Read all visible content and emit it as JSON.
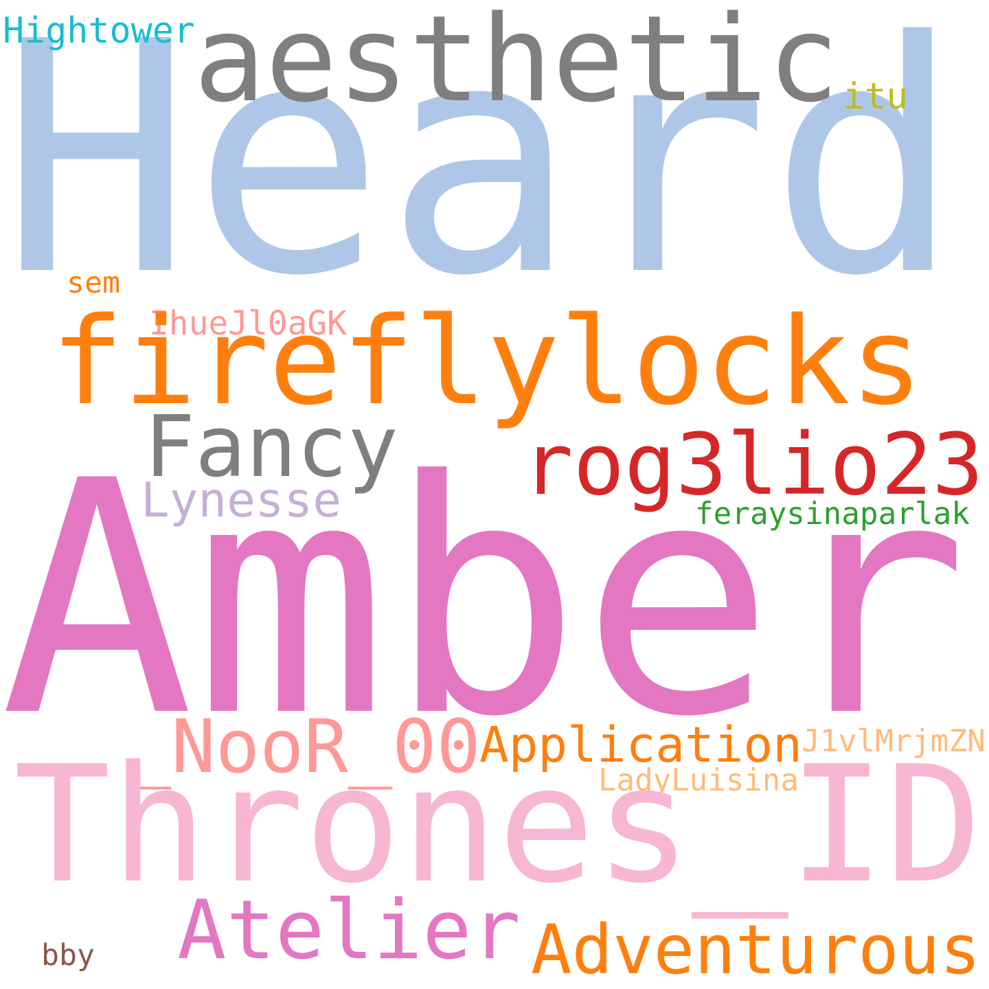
{
  "word_cloud": {
    "background": "#ffffff",
    "words": [
      {
        "id": "heard",
        "text": "Heard",
        "color": "#aec7e8"
      },
      {
        "id": "aesthetic",
        "text": "aesthetic",
        "color": "#7f7f7f"
      },
      {
        "id": "hightower",
        "text": "Hightower",
        "color": "#17becf"
      },
      {
        "id": "itu",
        "text": "itu",
        "color": "#bcbd22"
      },
      {
        "id": "fireflylocks",
        "text": "fireflylocks",
        "color": "#ff7f0e"
      },
      {
        "id": "sem",
        "text": "sem",
        "color": "#ff7f0e"
      },
      {
        "id": "ihuejl0agk",
        "text": "IhueJl0aGK",
        "color": "#ff9896"
      },
      {
        "id": "fancy",
        "text": "Fancy",
        "color": "#7f7f7f"
      },
      {
        "id": "rog3lio23",
        "text": "rog3lio23",
        "color": "#d62728"
      },
      {
        "id": "lynesse",
        "text": "Lynesse",
        "color": "#c5b0d5"
      },
      {
        "id": "feraysinaparlak",
        "text": "feraysinaparlak",
        "color": "#2ca02c"
      },
      {
        "id": "amber",
        "text": "Amber",
        "color": "#e377c2"
      },
      {
        "id": "noor",
        "text": "_NooR_00",
        "color": "#ff9896"
      },
      {
        "id": "application",
        "text": "Application",
        "color": "#ff7f0e"
      },
      {
        "id": "j1vlmrjmzn",
        "text": "J1vlMrjmZN",
        "color": "#ffbb78"
      },
      {
        "id": "ladyluisina",
        "text": "LadyLuisina",
        "color": "#ffbb78"
      },
      {
        "id": "thrones",
        "text": "Thrones_ID",
        "color": "#f7b6d2"
      },
      {
        "id": "atelier",
        "text": "Atelier",
        "color": "#e377c2"
      },
      {
        "id": "adventurous",
        "text": "Adventurous",
        "color": "#ff7f0e"
      },
      {
        "id": "bby",
        "text": "bby",
        "color": "#8c564b"
      }
    ]
  }
}
